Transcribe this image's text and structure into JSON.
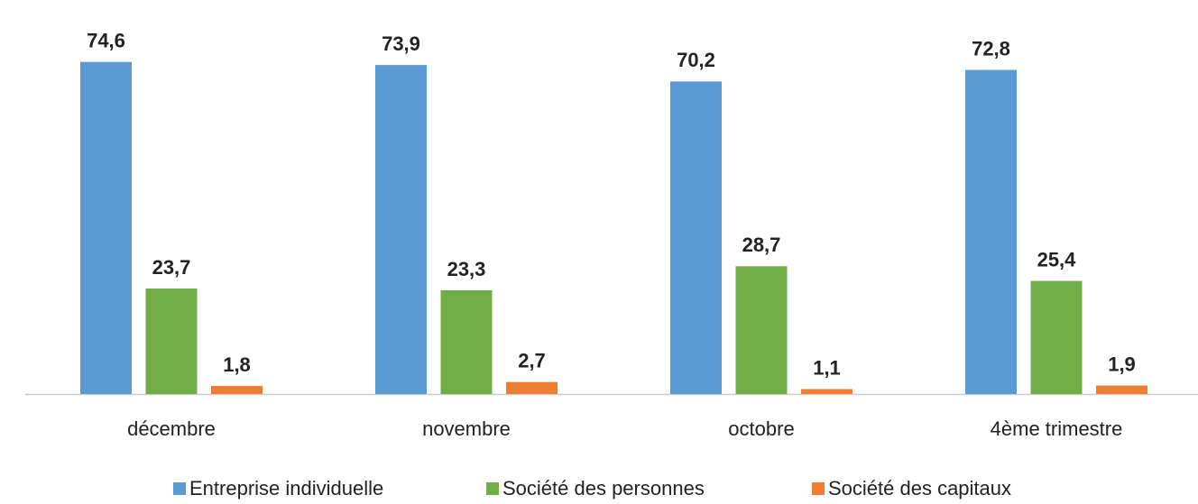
{
  "chart_data": {
    "type": "bar",
    "categories": [
      "décembre",
      "novembre",
      "octobre",
      "4ème trimestre"
    ],
    "series": [
      {
        "name": "Entreprise individuelle",
        "color": "#5b9bd5",
        "values": [
          74.6,
          73.9,
          70.2,
          72.8
        ],
        "value_labels": [
          "74,6",
          "73,9",
          "70,2",
          "72,8"
        ]
      },
      {
        "name": "Société des personnes",
        "color": "#70ad47",
        "values": [
          23.7,
          23.3,
          28.7,
          25.4
        ],
        "value_labels": [
          "23,7",
          "23,3",
          "28,7",
          "25,4"
        ]
      },
      {
        "name": "Société des capitaux",
        "color": "#ed7d31",
        "values": [
          1.8,
          2.7,
          1.1,
          1.9
        ],
        "value_labels": [
          "1,8",
          "2,7",
          "1,1",
          "1,9"
        ]
      }
    ],
    "ylim": [
      0,
      80
    ],
    "legend": "bottom"
  }
}
